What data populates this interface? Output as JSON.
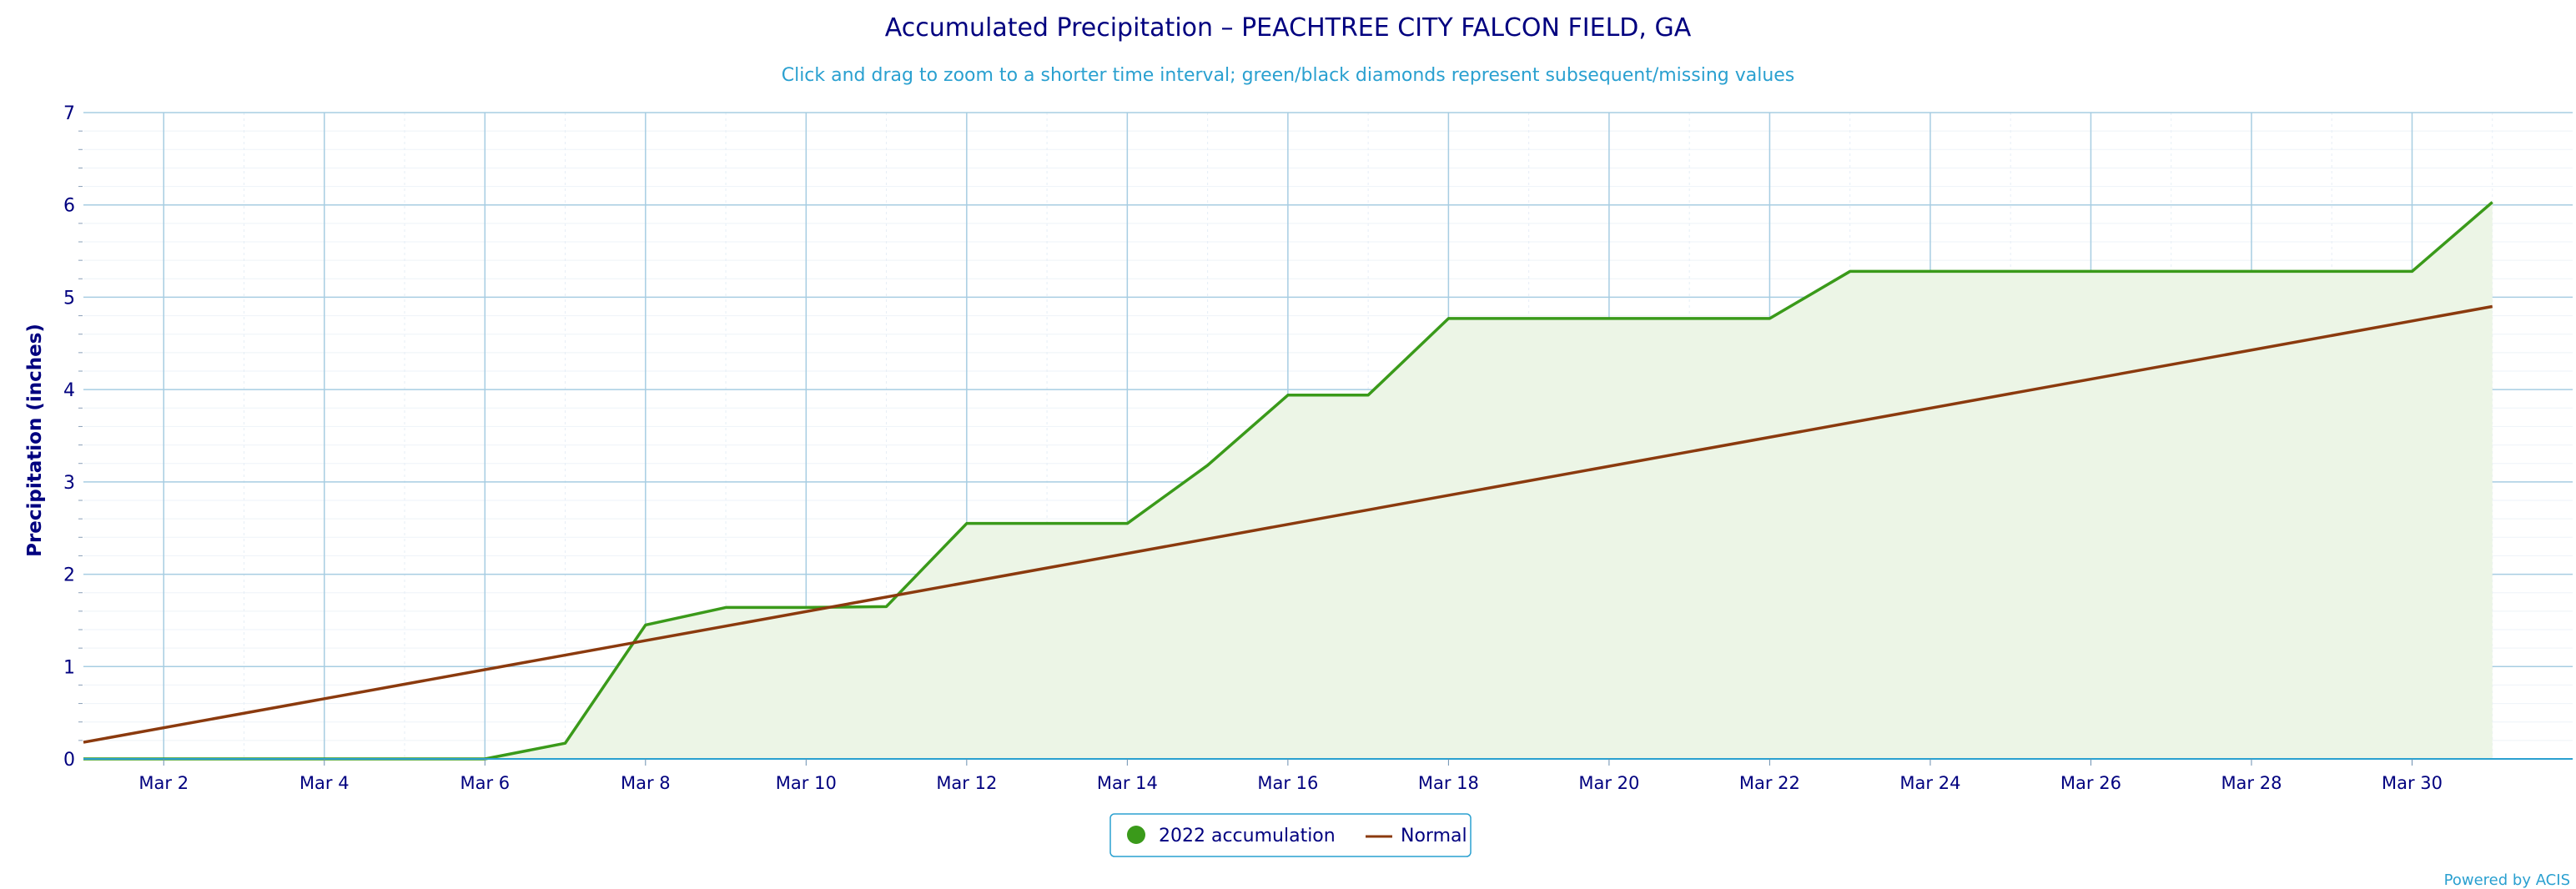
{
  "chart_data": {
    "type": "area",
    "title": "Accumulated Precipitation – PEACHTREE CITY FALCON FIELD, GA",
    "subtitle": "Click and drag to zoom to a shorter time interval; green/black diamonds represent subsequent/missing values",
    "ylabel": "Precipitation (inches)",
    "xlabel": "",
    "ylim": [
      0,
      7
    ],
    "xlim": [
      1,
      32
    ],
    "yticks": [
      0,
      1,
      2,
      3,
      4,
      5,
      6,
      7
    ],
    "x_tick_labels": [
      "Mar 2",
      "Mar 4",
      "Mar 6",
      "Mar 8",
      "Mar 10",
      "Mar 12",
      "Mar 14",
      "Mar 16",
      "Mar 18",
      "Mar 20",
      "Mar 22",
      "Mar 24",
      "Mar 26",
      "Mar 28",
      "Mar 30"
    ],
    "grid": true,
    "legend_position": "bottom-center",
    "series": [
      {
        "name": "2022 accumulation",
        "color": "#3a9a1a",
        "fill": "#ecf5e6",
        "x": [
          "Mar 1",
          "Mar 2",
          "Mar 3",
          "Mar 4",
          "Mar 5",
          "Mar 6",
          "Mar 7",
          "Mar 8",
          "Mar 9",
          "Mar 10",
          "Mar 11",
          "Mar 12",
          "Mar 13",
          "Mar 14",
          "Mar 15",
          "Mar 16",
          "Mar 17",
          "Mar 18",
          "Mar 19",
          "Mar 20",
          "Mar 21",
          "Mar 22",
          "Mar 23",
          "Mar 24",
          "Mar 25",
          "Mar 26",
          "Mar 27",
          "Mar 28",
          "Mar 29",
          "Mar 30",
          "Mar 31"
        ],
        "values": [
          0,
          0,
          0,
          0,
          0,
          0,
          0.17,
          1.45,
          1.64,
          1.64,
          1.65,
          2.55,
          2.55,
          2.55,
          3.18,
          3.94,
          3.94,
          4.77,
          4.77,
          4.77,
          4.77,
          4.77,
          5.28,
          5.28,
          5.28,
          5.28,
          5.28,
          5.28,
          5.28,
          5.28,
          6.03
        ]
      },
      {
        "name": "Normal",
        "color": "#8b3a0e",
        "x": [
          "Mar 1",
          "Mar 31"
        ],
        "values": [
          0.18,
          4.9
        ]
      }
    ],
    "credit": "Powered by ACIS"
  }
}
